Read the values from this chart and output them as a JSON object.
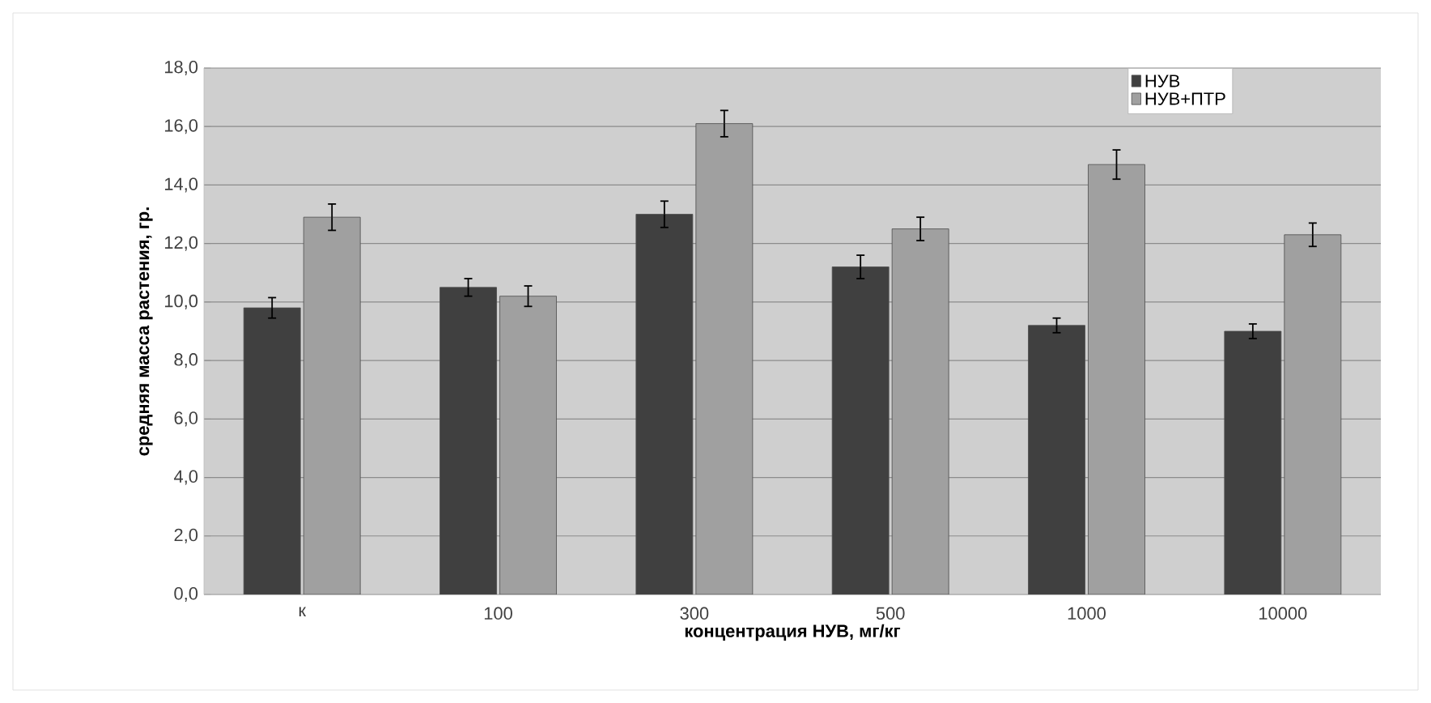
{
  "chart_data": {
    "type": "bar",
    "xlabel": "концентрация НУВ, мг/кг",
    "ylabel": "средняя масса растения, гр.",
    "categories": [
      "к",
      "100",
      "300",
      "500",
      "1000",
      "10000"
    ],
    "series": [
      {
        "name": "НУВ",
        "color": "#404040",
        "values": [
          9.8,
          10.5,
          13.0,
          11.2,
          9.2,
          9.0
        ],
        "errors": [
          0.35,
          0.3,
          0.45,
          0.4,
          0.25,
          0.25
        ]
      },
      {
        "name": "НУВ+ПТР",
        "color": "#a0a0a0",
        "values": [
          12.9,
          10.2,
          16.1,
          12.5,
          14.7,
          12.3
        ],
        "errors": [
          0.45,
          0.35,
          0.45,
          0.4,
          0.5,
          0.4
        ]
      }
    ],
    "ylim": [
      0,
      18
    ],
    "yticks": [
      {
        "value": 0,
        "label": "0,0"
      },
      {
        "value": 2,
        "label": "2,0"
      },
      {
        "value": 4,
        "label": "4,0"
      },
      {
        "value": 6,
        "label": "6,0"
      },
      {
        "value": 8,
        "label": "8,0"
      },
      {
        "value": 10,
        "label": "10,0"
      },
      {
        "value": 12,
        "label": "12,0"
      },
      {
        "value": 14,
        "label": "14,0"
      },
      {
        "value": 16,
        "label": "16,0"
      },
      {
        "value": 18,
        "label": "18,0"
      }
    ],
    "grid": "y",
    "legend": "top right"
  }
}
